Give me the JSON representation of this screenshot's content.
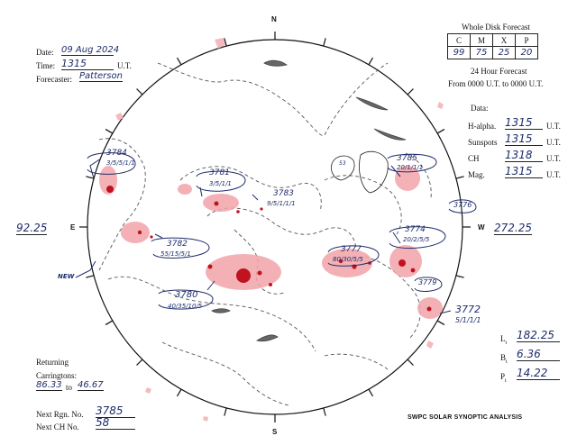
{
  "header": {
    "date_label": "Date:",
    "date_value": "09 Aug 2024",
    "time_label": "Time:",
    "time_value": "1315",
    "time_unit": "U.T.",
    "forecaster_label": "Forecaster:",
    "forecaster_value": "Patterson"
  },
  "forecast": {
    "title": "Whole Disk Forecast",
    "columns": [
      "C",
      "M",
      "X",
      "P"
    ],
    "values": [
      "99",
      "75",
      "25",
      "20"
    ],
    "subtitle": "24 Hour Forecast",
    "period": "From 0000 U.T. to 0000 U.T."
  },
  "data_times": {
    "title": "Data:",
    "rows": [
      {
        "label": "H-alpha.",
        "value": "1315",
        "unit": "U.T."
      },
      {
        "label": "Sunspots",
        "value": "1315",
        "unit": "U.T."
      },
      {
        "label": "CH",
        "value": "1318",
        "unit": "U.T."
      },
      {
        "label": "Mag.",
        "value": "1315",
        "unit": "U.T."
      }
    ]
  },
  "directions": {
    "n": "N",
    "s": "S",
    "e": "E",
    "w": "W"
  },
  "limb_values": {
    "east": "92.25",
    "west": "272.25"
  },
  "regions": [
    {
      "number": "3784",
      "code": "3/5/5/1/1"
    },
    {
      "number": "3781",
      "code": "3/5/1/1"
    },
    {
      "number": "3783",
      "code": "9/5/1/1/1"
    },
    {
      "number": "3785",
      "code": "20/1/1/1"
    },
    {
      "number": "3776",
      "code": ""
    },
    {
      "number": "3782",
      "code": "55/15/5/1"
    },
    {
      "number": "3777",
      "code": "80/30/5/5"
    },
    {
      "number": "3774",
      "code": "20/2/5/5"
    },
    {
      "number": "3780",
      "code": "40/35/10/5"
    },
    {
      "number": "3779",
      "code": ""
    },
    {
      "number": "3772",
      "code": "5/1/1/1"
    }
  ],
  "annotations": {
    "new_label": "NEW",
    "ch_number": "53"
  },
  "returning": {
    "title": "Returning",
    "carringtons_label": "Carringtons:",
    "from_value": "86.33",
    "to_label": "to",
    "to_value": "46.67"
  },
  "next": {
    "rgn_label": "Next Rgn. No.",
    "rgn_value": "3785",
    "ch_label": "Next CH No.",
    "ch_value": "58"
  },
  "coords": {
    "l_label": "L",
    "l_value": "182.25",
    "b_label": "B",
    "b_value": "6.36",
    "p_label": "P",
    "p_value": "14.22",
    "subscript": "t"
  },
  "footer_title": "SWPC SOLAR SYNOPTIC ANALYSIS",
  "colors": {
    "active_region": "#e0303a",
    "sunspot": "#b0101a",
    "ink": "#1f2c6b",
    "coronal_hole": "#555555"
  }
}
